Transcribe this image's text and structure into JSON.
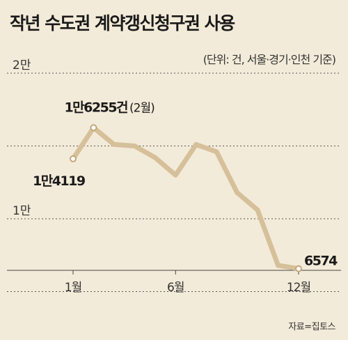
{
  "title": "작년 수도권 계약갱신청구권 사용",
  "unit": "(단위: 건, 서울·경기·인천 기준)",
  "source": "자료=집토스",
  "chart_data": {
    "type": "line",
    "x": [
      1,
      2,
      3,
      4,
      5,
      6,
      7,
      8,
      9,
      10,
      11,
      12
    ],
    "xtick_labels": [
      "1월",
      "6월",
      "12월"
    ],
    "xtick_positions": [
      1,
      6,
      12
    ],
    "ytick_labels": [
      "2만",
      "1만"
    ],
    "ytick_values": [
      20000,
      10000
    ],
    "ylim": [
      0,
      20000
    ],
    "series": [
      {
        "values": [
          14119,
          16255,
          15100,
          15000,
          14200,
          13000,
          15100,
          14600,
          11800,
          10600,
          6800,
          6574
        ]
      }
    ],
    "annotations": [
      {
        "index": 0,
        "text": "1만4119"
      },
      {
        "index": 1,
        "text": "1만6255건",
        "note": "(2월)"
      },
      {
        "index": 11,
        "text": "6574"
      }
    ],
    "grid": true,
    "colors": {
      "line": "#d6c09a",
      "marker_fill": "#ffffff",
      "marker_stroke": "#c2a77a",
      "grid": "#555555"
    }
  }
}
